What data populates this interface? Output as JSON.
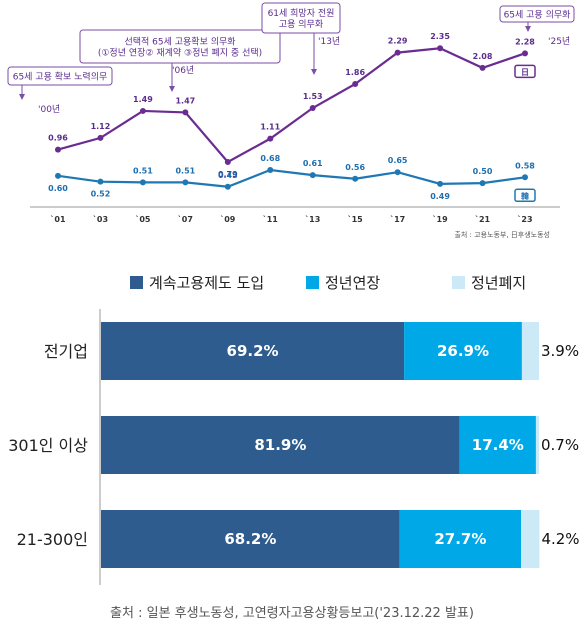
{
  "chart_data": [
    {
      "type": "line",
      "x": [
        "`01",
        "`03",
        "`05",
        "`07",
        "`09",
        "`11",
        "`13",
        "`15",
        "`17",
        "`19",
        "`21",
        "`23"
      ],
      "series": [
        {
          "name": "日",
          "values": [
            0.96,
            1.12,
            1.49,
            1.47,
            0.79,
            1.11,
            1.53,
            1.86,
            2.29,
            2.35,
            2.08,
            2.28
          ],
          "color": "#6a2c91"
        },
        {
          "name": "韓",
          "values": [
            0.6,
            0.52,
            0.51,
            0.51,
            0.45,
            0.68,
            0.61,
            0.56,
            0.65,
            0.49,
            0.5,
            0.58
          ],
          "color": "#1f78b4"
        }
      ],
      "ylim": [
        0.2,
        2.6
      ],
      "grid": false,
      "annotations": [
        {
          "text_lines": [
            "65세 고용 확보 노력의무"
          ],
          "year_label": "'00년"
        },
        {
          "text_lines": [
            "선택적 65세 고용확보 의무화",
            "(①정년 연장② 재계약 ③정년 폐지 중 선택)"
          ],
          "year_label": "'06년"
        },
        {
          "text_lines": [
            "61세 희망자 전원",
            "고용 의무화"
          ],
          "year_label": "'13년"
        },
        {
          "text_lines": [
            "65세 고용 의무화"
          ],
          "year_label": "'25년"
        }
      ],
      "source": "출처 : 고용노동부, 日후생노동성"
    },
    {
      "type": "bar",
      "orientation": "horizontal",
      "stacked": true,
      "categories": [
        "전기업",
        "301인 이상",
        "21-300인"
      ],
      "series": [
        {
          "name": "계속고용제도 도입",
          "values": [
            69.2,
            81.9,
            68.2
          ],
          "labels": [
            "69.2%",
            "81.9%",
            "68.2%"
          ],
          "color": "#2e5c8e"
        },
        {
          "name": "정년연장",
          "values": [
            26.9,
            17.4,
            27.7
          ],
          "labels": [
            "26.9%",
            "17.4%",
            "27.7%"
          ],
          "color": "#00a8e8"
        },
        {
          "name": "정년폐지",
          "values": [
            3.9,
            0.7,
            4.2
          ],
          "labels": [
            "3.9%",
            "0.7%",
            "4.2%"
          ],
          "color": "#cce9f8"
        }
      ],
      "xlim": [
        0,
        100
      ],
      "legend": "top",
      "source": "출처 : 일본 후생노동성, 고연령자고용상황등보고('23.12.22  발표)"
    }
  ]
}
